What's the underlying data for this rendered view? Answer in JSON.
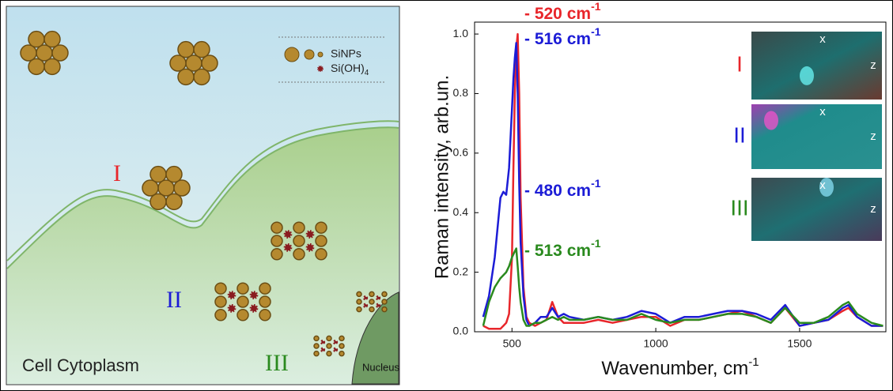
{
  "diagram": {
    "legend": [
      {
        "text": "SiNPs"
      },
      {
        "text": "Si(OH)",
        "sub": "4"
      }
    ],
    "labels": [
      "I",
      "II",
      "III"
    ],
    "cytoplasm": "Cell Cytoplasm",
    "nucleus": "Nucleus"
  },
  "chart_data": {
    "type": "line",
    "xlabel": {
      "text": "Wavenumber, cm",
      "sup": "-1"
    },
    "ylabel": "Raman intensity, arb.un.",
    "x": [
      400,
      420,
      440,
      460,
      470,
      480,
      490,
      500,
      505,
      510,
      515,
      520,
      525,
      530,
      540,
      550,
      560,
      580,
      600,
      620,
      640,
      660,
      680,
      700,
      750,
      800,
      850,
      900,
      950,
      1000,
      1050,
      1100,
      1150,
      1200,
      1250,
      1300,
      1350,
      1400,
      1450,
      1500,
      1550,
      1600,
      1650,
      1670,
      1700,
      1750,
      1790
    ],
    "series": [
      {
        "color": "#e8262b",
        "values": [
          0.02,
          0.01,
          0.01,
          0.01,
          0.02,
          0.03,
          0.06,
          0.25,
          0.55,
          0.8,
          0.95,
          1.0,
          0.8,
          0.45,
          0.15,
          0.05,
          0.03,
          0.02,
          0.03,
          0.04,
          0.1,
          0.05,
          0.03,
          0.03,
          0.03,
          0.04,
          0.03,
          0.04,
          0.05,
          0.05,
          0.02,
          0.04,
          0.04,
          0.05,
          0.06,
          0.07,
          0.05,
          0.03,
          0.08,
          0.02,
          0.03,
          0.04,
          0.07,
          0.08,
          0.05,
          0.02,
          0.02
        ]
      },
      {
        "color": "#1c1cd6",
        "values": [
          0.05,
          0.12,
          0.25,
          0.45,
          0.47,
          0.46,
          0.55,
          0.75,
          0.85,
          0.92,
          0.97,
          0.8,
          0.5,
          0.3,
          0.12,
          0.04,
          0.02,
          0.03,
          0.05,
          0.05,
          0.08,
          0.05,
          0.06,
          0.05,
          0.04,
          0.05,
          0.04,
          0.05,
          0.07,
          0.06,
          0.03,
          0.05,
          0.05,
          0.06,
          0.07,
          0.07,
          0.06,
          0.04,
          0.09,
          0.02,
          0.03,
          0.04,
          0.08,
          0.09,
          0.05,
          0.02,
          0.02
        ]
      },
      {
        "color": "#2a8a1e",
        "values": [
          0.02,
          0.1,
          0.15,
          0.18,
          0.19,
          0.2,
          0.22,
          0.25,
          0.26,
          0.27,
          0.28,
          0.22,
          0.15,
          0.1,
          0.04,
          0.02,
          0.02,
          0.03,
          0.03,
          0.04,
          0.05,
          0.04,
          0.05,
          0.04,
          0.04,
          0.05,
          0.04,
          0.04,
          0.06,
          0.04,
          0.03,
          0.04,
          0.04,
          0.05,
          0.06,
          0.06,
          0.05,
          0.03,
          0.08,
          0.03,
          0.03,
          0.05,
          0.09,
          0.1,
          0.06,
          0.03,
          0.02
        ]
      }
    ],
    "xlim": [
      370,
      1800
    ],
    "xticks": [
      500,
      1000,
      1500
    ],
    "ylim": [
      0,
      1.04
    ],
    "yticks": [
      {
        "value": 0,
        "label": "0.0"
      },
      0.2,
      0.4,
      0.6,
      0.8,
      {
        "value": 1,
        "label": "1.0"
      }
    ],
    "annotations": [
      {
        "text": "- 520 cm",
        "sup": "-1",
        "color": "#e8262b"
      },
      {
        "text": "- 516 cm",
        "sup": "-1",
        "color": "#1c1cd6"
      },
      {
        "text": "- 480 cm",
        "sup": "-1",
        "color": "#1c1cd6"
      },
      {
        "text": "- 513 cm",
        "sup": "-1",
        "color": "#2a8a1e"
      }
    ],
    "insets": [
      {
        "label": "I",
        "color": "#e8262b",
        "axes": [
          "x",
          "z"
        ]
      },
      {
        "label": "II",
        "color": "#1c1cd6",
        "axes": [
          "x",
          "z"
        ]
      },
      {
        "label": "III",
        "color": "#2a8a1e",
        "axes": [
          "x",
          "z"
        ]
      }
    ]
  }
}
